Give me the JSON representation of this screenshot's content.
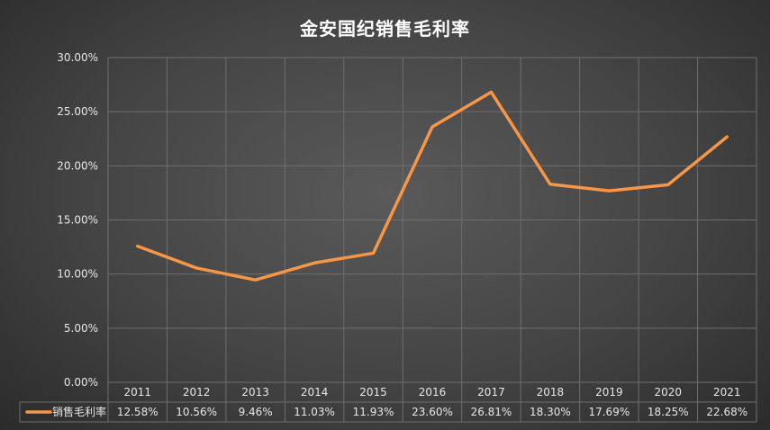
{
  "chart_data": {
    "type": "line",
    "title": "金安国纪销售毛利率",
    "categories": [
      "2011",
      "2012",
      "2013",
      "2014",
      "2015",
      "2016",
      "2017",
      "2018",
      "2019",
      "2020",
      "2021"
    ],
    "series": [
      {
        "name": "销售毛利率",
        "values": [
          12.58,
          10.56,
          9.46,
          11.03,
          11.93,
          23.6,
          26.81,
          18.3,
          17.69,
          18.25,
          22.68
        ],
        "labels": [
          "12.58%",
          "10.56%",
          "9.46%",
          "11.03%",
          "11.93%",
          "23.60%",
          "26.81%",
          "18.30%",
          "17.69%",
          "18.25%",
          "22.68%"
        ],
        "color": "#f79646"
      }
    ],
    "yticks": [
      "0.00%",
      "5.00%",
      "10.00%",
      "15.00%",
      "20.00%",
      "25.00%",
      "30.00%"
    ],
    "ylim": [
      0,
      30
    ],
    "grid": true,
    "data_table": true,
    "legend": "data-table"
  }
}
